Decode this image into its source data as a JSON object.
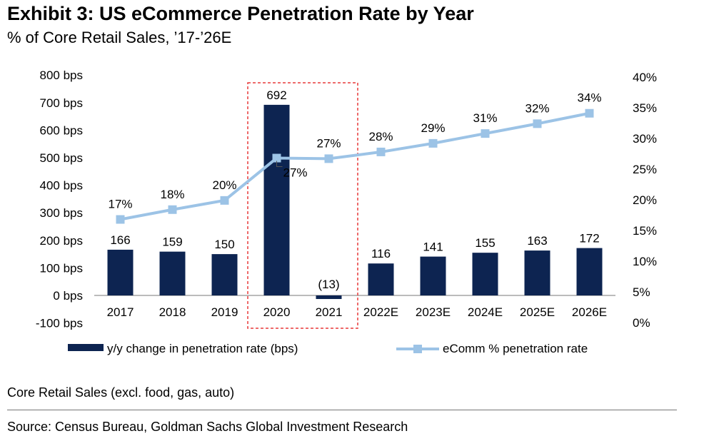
{
  "title": "Exhibit 3: US eCommerce Penetration Rate by Year",
  "subtitle": "% of Core Retail Sales, ’17-’26E",
  "note": "Core Retail Sales (excl. food, gas, auto)",
  "source": "Source: Census Bureau, Goldman Sachs Global Investment Research",
  "colors": {
    "bar": "#0d2451",
    "line": "#9cc3e6",
    "highlight": "#e83a3a",
    "axis": "#777777"
  },
  "chart_data": {
    "type": "bar+line",
    "categories": [
      "2017",
      "2018",
      "2019",
      "2020",
      "2021",
      "2022E",
      "2023E",
      "2024E",
      "2025E",
      "2026E"
    ],
    "series": [
      {
        "name": "y/y change in penetration rate (bps)",
        "type": "bar",
        "axis": "left",
        "values": [
          166,
          159,
          150,
          692,
          -13,
          116,
          141,
          155,
          163,
          172
        ],
        "labels": [
          "166",
          "159",
          "150",
          "692",
          "(13)",
          "116",
          "141",
          "155",
          "163",
          "172"
        ]
      },
      {
        "name": "eComm % penetration rate",
        "type": "line",
        "axis": "right",
        "values": [
          16.8,
          18.4,
          19.9,
          26.8,
          26.7,
          27.8,
          29.2,
          30.8,
          32.4,
          34.1
        ],
        "labels": [
          "17%",
          "18%",
          "20%",
          "27%",
          "27%",
          "28%",
          "29%",
          "31%",
          "32%",
          "34%"
        ]
      }
    ],
    "y_left": {
      "min": -100,
      "max": 800,
      "step": 100,
      "suffix": " bps",
      "ticks": [
        "-100 bps",
        "0 bps",
        "100 bps",
        "200 bps",
        "300 bps",
        "400 bps",
        "500 bps",
        "600 bps",
        "700 bps",
        "800 bps"
      ]
    },
    "y_right": {
      "min": 0,
      "max": 40,
      "step": 5,
      "ticks": [
        "0%",
        "5%",
        "10%",
        "15%",
        "20%",
        "25%",
        "30%",
        "35%",
        "40%"
      ]
    },
    "highlight_categories": [
      "2020",
      "2021"
    ],
    "legend_position": "bottom"
  }
}
